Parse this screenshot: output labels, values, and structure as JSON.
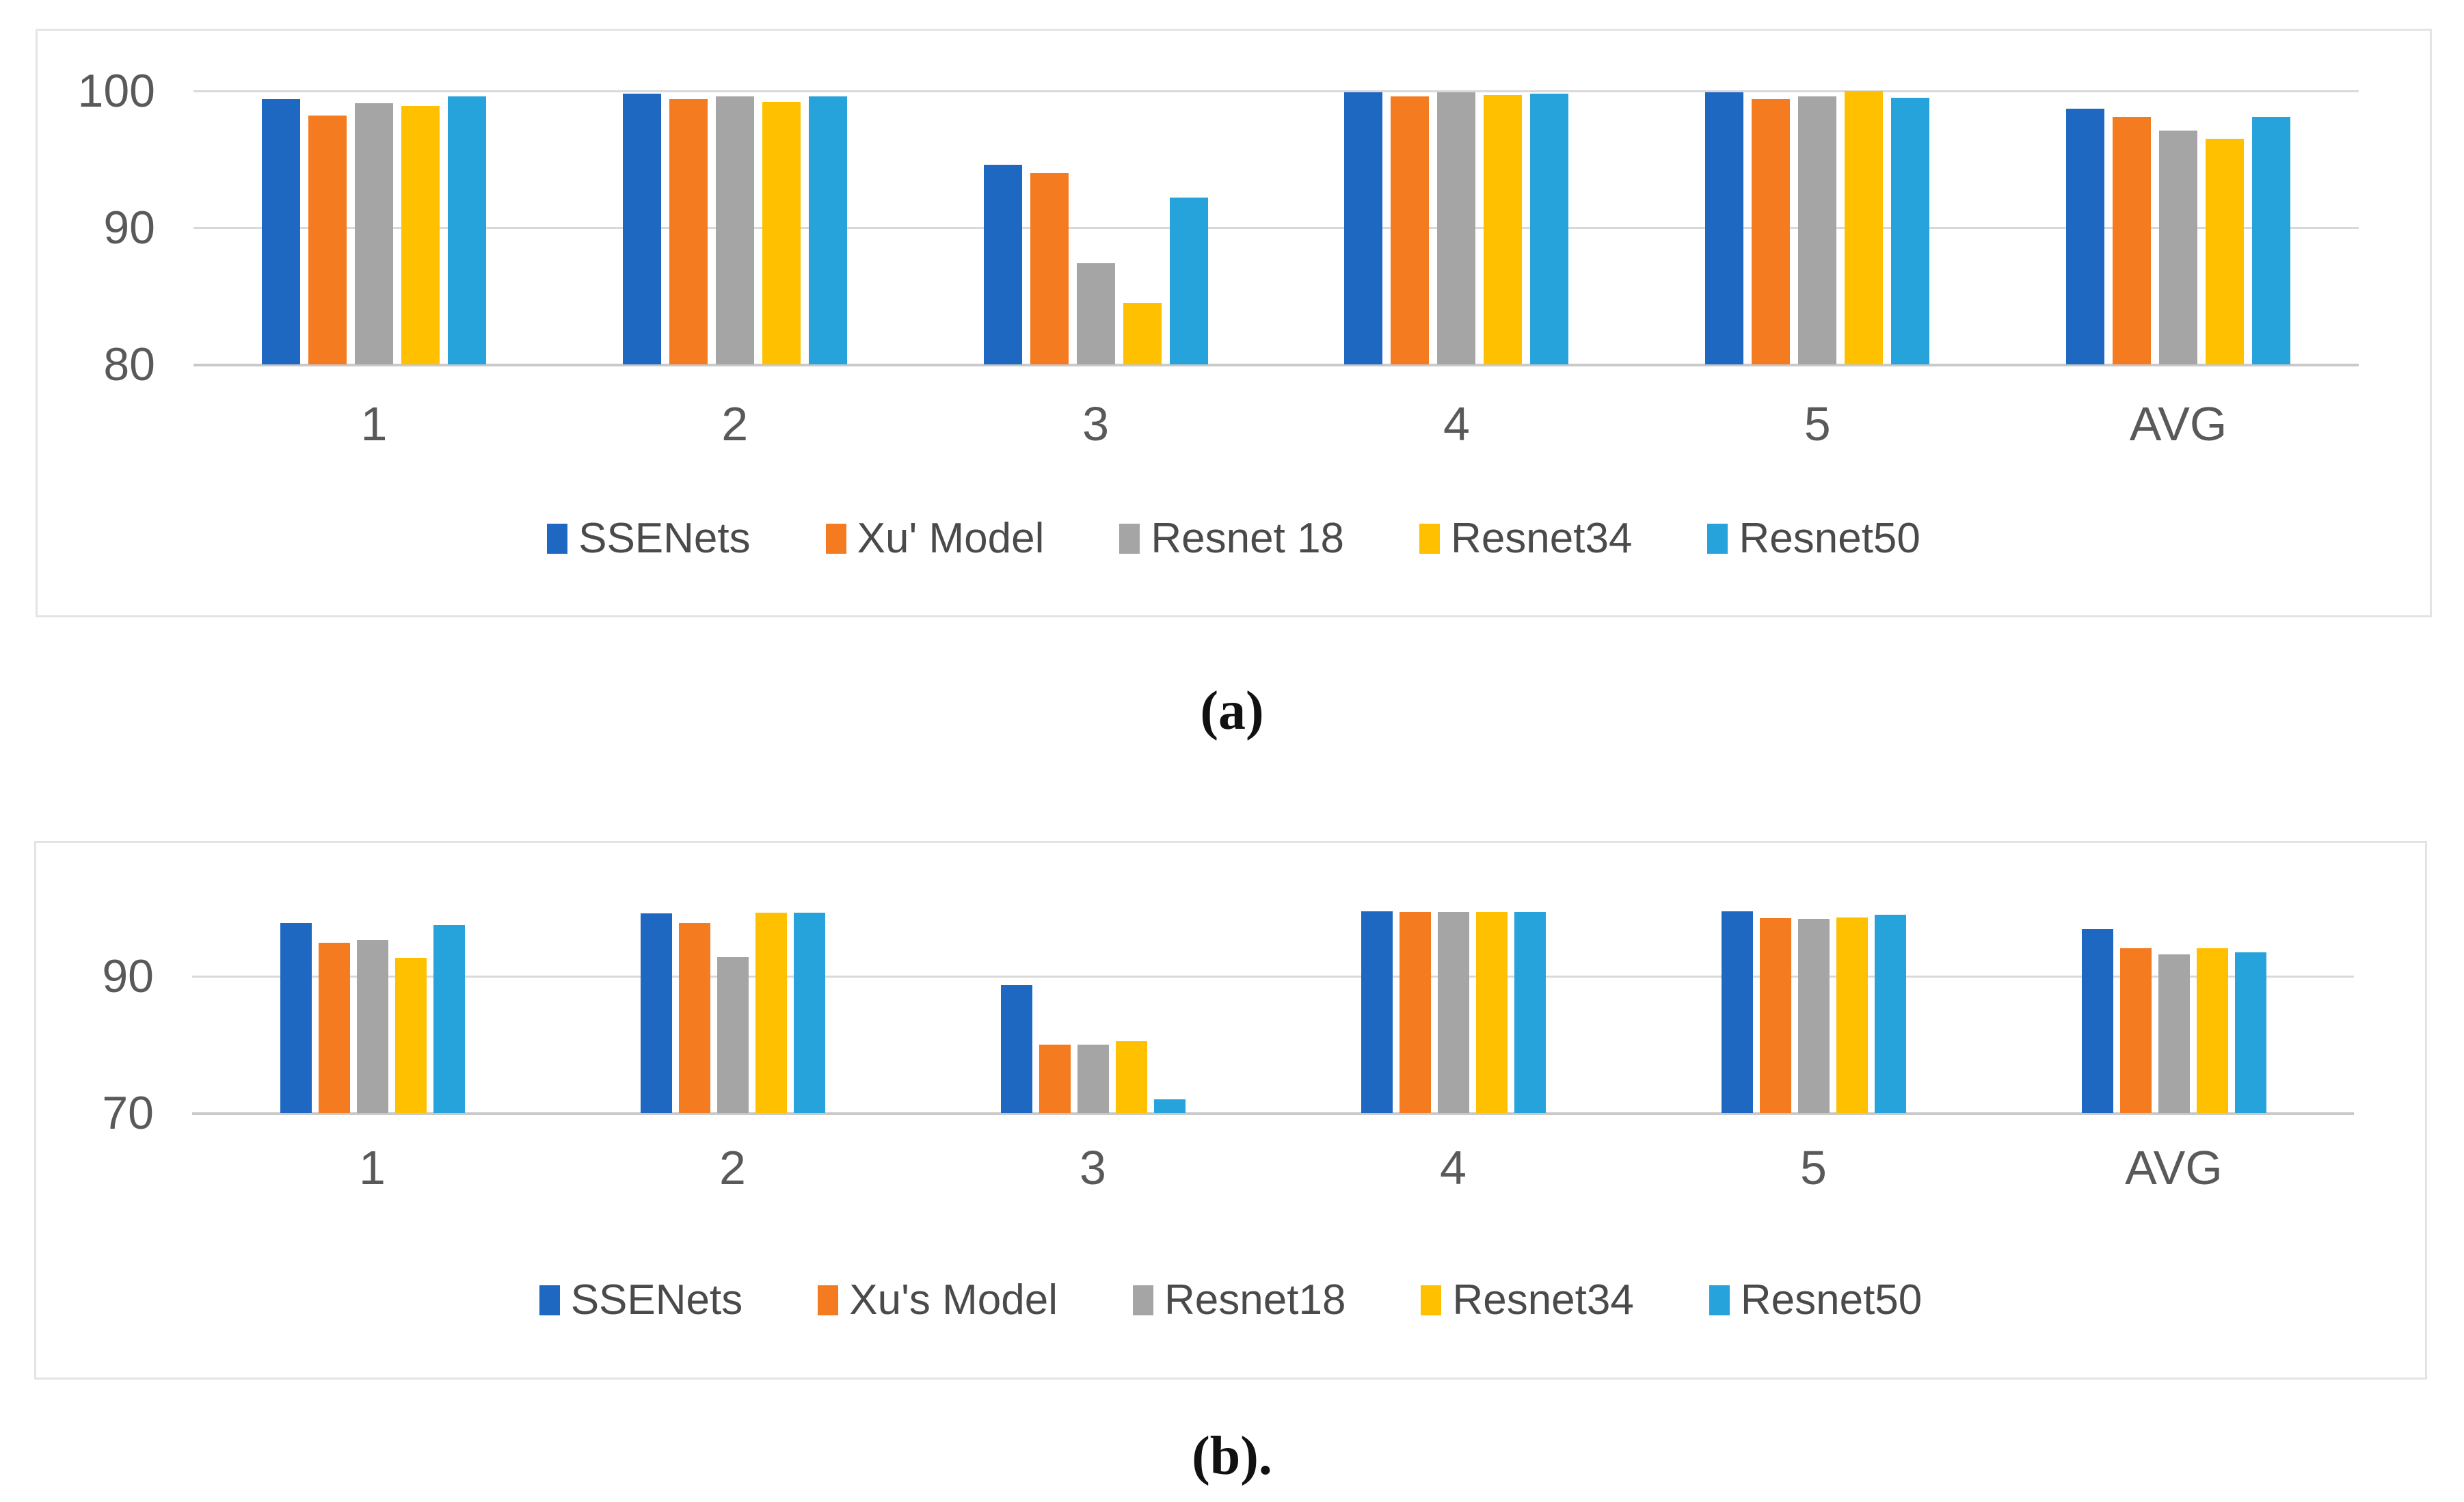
{
  "figure": {
    "captions": [
      "(a)",
      "(b)."
    ]
  },
  "chart_data": [
    {
      "type": "bar",
      "title": "",
      "xlabel": "",
      "ylabel": "",
      "categories": [
        "1",
        "2",
        "3",
        "4",
        "5",
        "AVG"
      ],
      "series": [
        {
          "name": "SSENets",
          "color": "#1F68C1",
          "values": [
            99.4,
            99.8,
            94.6,
            99.9,
            99.9,
            98.7
          ]
        },
        {
          "name": "Xu' Model",
          "color": "#F47B20",
          "values": [
            98.2,
            99.4,
            94.0,
            99.6,
            99.4,
            98.1
          ]
        },
        {
          "name": "Resnet 18",
          "color": "#A5A5A5",
          "values": [
            99.1,
            99.6,
            87.4,
            99.9,
            99.6,
            97.1
          ]
        },
        {
          "name": "Resnet34",
          "color": "#FFC000",
          "values": [
            98.9,
            99.2,
            84.5,
            99.7,
            100.0,
            96.5
          ]
        },
        {
          "name": "Resnet50",
          "color": "#27A3DB",
          "values": [
            99.6,
            99.6,
            92.2,
            99.8,
            99.5,
            98.1
          ]
        }
      ],
      "ylim": [
        80,
        101
      ],
      "yticks": [
        100,
        90,
        80
      ],
      "grid": true,
      "legend_position": "bottom"
    },
    {
      "type": "bar",
      "title": "",
      "xlabel": "",
      "ylabel": "",
      "categories": [
        "1",
        "2",
        "3",
        "4",
        "5",
        "AVG"
      ],
      "series": [
        {
          "name": "SSENets",
          "color": "#1F68C1",
          "values": [
            97.8,
            99.2,
            88.7,
            99.5,
            99.5,
            96.9
          ]
        },
        {
          "name": "Xu's Model",
          "color": "#F47B20",
          "values": [
            94.9,
            97.8,
            80.0,
            99.4,
            98.5,
            94.1
          ]
        },
        {
          "name": "Resnet18",
          "color": "#A5A5A5",
          "values": [
            95.3,
            92.8,
            80.0,
            99.4,
            98.4,
            93.2
          ]
        },
        {
          "name": "Resnet34",
          "color": "#FFC000",
          "values": [
            92.7,
            99.3,
            80.5,
            99.4,
            98.6,
            94.1
          ]
        },
        {
          "name": "Resnet50",
          "color": "#27A3DB",
          "values": [
            97.5,
            99.3,
            72.0,
            99.4,
            99.0,
            93.5
          ]
        }
      ],
      "ylim": [
        70,
        101
      ],
      "yticks": [
        90,
        70
      ],
      "grid": true,
      "legend_position": "bottom"
    }
  ]
}
